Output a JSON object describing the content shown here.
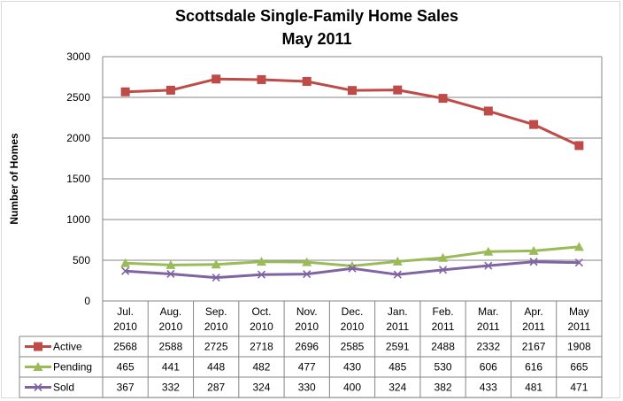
{
  "chart_data": {
    "type": "line",
    "title": "Scottsdale Single-Family  Home Sales",
    "subtitle": "May 2011",
    "ylabel": "Number of Homes",
    "xlabel": "",
    "ylim": [
      0,
      3000
    ],
    "yticks": [
      0,
      500,
      1000,
      1500,
      2000,
      2500,
      3000
    ],
    "grid": true,
    "legend": "data-table-left",
    "categories": [
      [
        "Jul.",
        "2010"
      ],
      [
        "Aug.",
        "2010"
      ],
      [
        "Sep.",
        "2010"
      ],
      [
        "Oct.",
        "2010"
      ],
      [
        "Nov.",
        "2010"
      ],
      [
        "Dec.",
        "2010"
      ],
      [
        "Jan.",
        "2011"
      ],
      [
        "Feb.",
        "2011"
      ],
      [
        "Mar.",
        "2011"
      ],
      [
        "Apr.",
        "2011"
      ],
      [
        "May",
        "2011"
      ]
    ],
    "series": [
      {
        "name": "Active",
        "color": "#be4b48",
        "marker": "square",
        "values": [
          2568,
          2588,
          2725,
          2718,
          2696,
          2585,
          2591,
          2488,
          2332,
          2167,
          1908
        ]
      },
      {
        "name": "Pending",
        "color": "#9bbb59",
        "marker": "triangle",
        "values": [
          465,
          441,
          448,
          482,
          477,
          430,
          485,
          530,
          606,
          616,
          665
        ]
      },
      {
        "name": "Sold",
        "color": "#8064a2",
        "marker": "x",
        "values": [
          367,
          332,
          287,
          324,
          330,
          400,
          324,
          382,
          433,
          481,
          471
        ]
      }
    ]
  }
}
